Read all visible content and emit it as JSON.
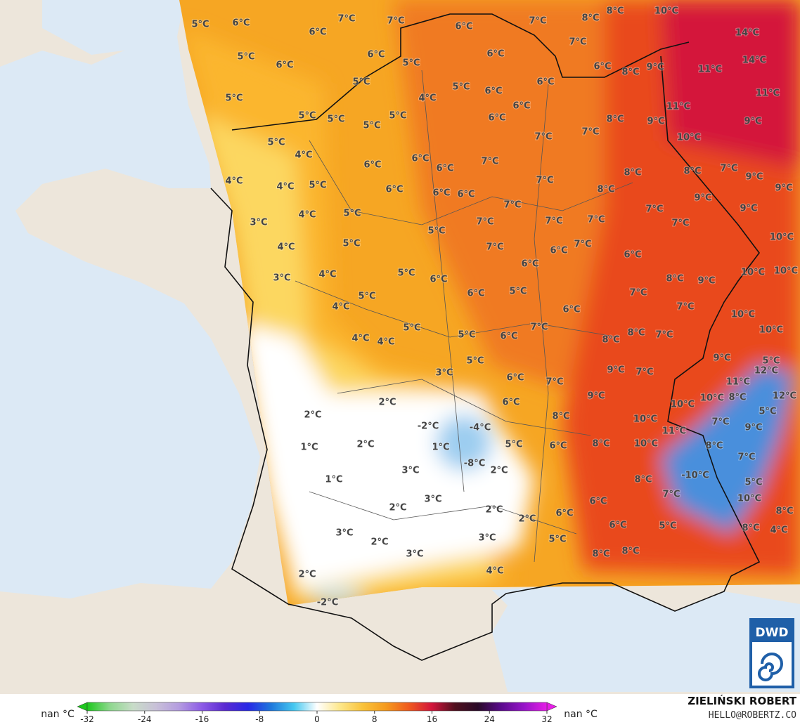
{
  "map": {
    "labels": [
      "5°C",
      "6°C",
      "7°C",
      "7°C",
      "6°C",
      "7°C",
      "8°C",
      "8°C",
      "10°C",
      "14°C",
      "14°C",
      "11°C",
      "11°C",
      "6°C",
      "5°C",
      "6°C",
      "6°C",
      "6°C",
      "7°C",
      "5°C",
      "5°C",
      "4°C",
      "5°C",
      "6°C",
      "6°C",
      "6°C",
      "8°C",
      "9°C",
      "5°C",
      "5°C",
      "5°C",
      "5°C",
      "5°C",
      "6°C",
      "6°C",
      "8°C",
      "11°C",
      "9°C",
      "9°C",
      "10°C",
      "5°C",
      "4°C",
      "7°C",
      "7°C",
      "6°C",
      "6°C",
      "6°C",
      "7°C",
      "8°C",
      "8°C",
      "7°C",
      "9°C",
      "9°C",
      "4°C",
      "4°C",
      "5°C",
      "6°C",
      "6°C",
      "6°C",
      "7°C",
      "8°C",
      "9°C",
      "9°C",
      "7°C",
      "7°C",
      "4°C",
      "5°C",
      "3°C",
      "7°C",
      "7°C",
      "7°C",
      "7°C",
      "5°C",
      "4°C",
      "5°C",
      "7°C",
      "6°C",
      "7°C",
      "6°C",
      "10°C",
      "3°C",
      "4°C",
      "5°C",
      "6°C",
      "6°C",
      "8°C",
      "9°C",
      "10°C",
      "10°C",
      "5°C",
      "4°C",
      "6°C",
      "5°C",
      "7°C",
      "6°C",
      "7°C",
      "10°C",
      "5°C",
      "7°C",
      "8°C",
      "8°C",
      "7°C",
      "10°C",
      "4°C",
      "4°C",
      "5°C",
      "6°C",
      "5°C",
      "3°C",
      "9°C",
      "5°C",
      "9°C",
      "7°C",
      "6°C",
      "7°C",
      "11°C",
      "12°C",
      "2°C",
      "2°C",
      "6°C",
      "9°C",
      "10°C",
      "10°C",
      "8°C",
      "12°C",
      "8°C",
      "5°C",
      "-2°C",
      "-4°C",
      "10°C",
      "7°C",
      "9°C",
      "11°C",
      "1°C",
      "2°C",
      "1°C",
      "5°C",
      "6°C",
      "8°C",
      "10°C",
      "8°C",
      "-8°C",
      "2°C",
      "3°C",
      "7°C",
      "1°C",
      "-10°C",
      "8°C",
      "5°C",
      "7°C",
      "3°C",
      "2°C",
      "2°C",
      "6°C",
      "6°C",
      "10°C",
      "8°C",
      "2°C",
      "6°C",
      "5°C",
      "8°C",
      "4°C",
      "3°C",
      "2°C",
      "3°C",
      "5°C",
      "3°C",
      "8°C",
      "8°C",
      "4°C",
      "2°C",
      "-2°C"
    ]
  },
  "colorbar": {
    "min_label": "nan °C",
    "max_label": "nan °C",
    "lim": [
      -32,
      32
    ],
    "ticks": [
      -32,
      -24,
      -16,
      -8,
      0,
      8,
      16,
      24,
      32
    ],
    "colors": [
      "#1ec81e",
      "#8fd88f",
      "#c8dcc8",
      "#c8c0d8",
      "#b49ce0",
      "#8c5ae6",
      "#5a2ad2",
      "#2828e6",
      "#1e78dc",
      "#46c8f0",
      "#ffffff",
      "#fde78a",
      "#f9c23a",
      "#f59a1e",
      "#ef5a1e",
      "#d2143c",
      "#50101e",
      "#2a0a28",
      "#5a0a8c",
      "#9614c8",
      "#e61ee6"
    ]
  },
  "credit": {
    "author": "ZIELIŃSKI ROBERT",
    "email": "HELLO@ROBERTZ.CO"
  },
  "logo": "DWD"
}
